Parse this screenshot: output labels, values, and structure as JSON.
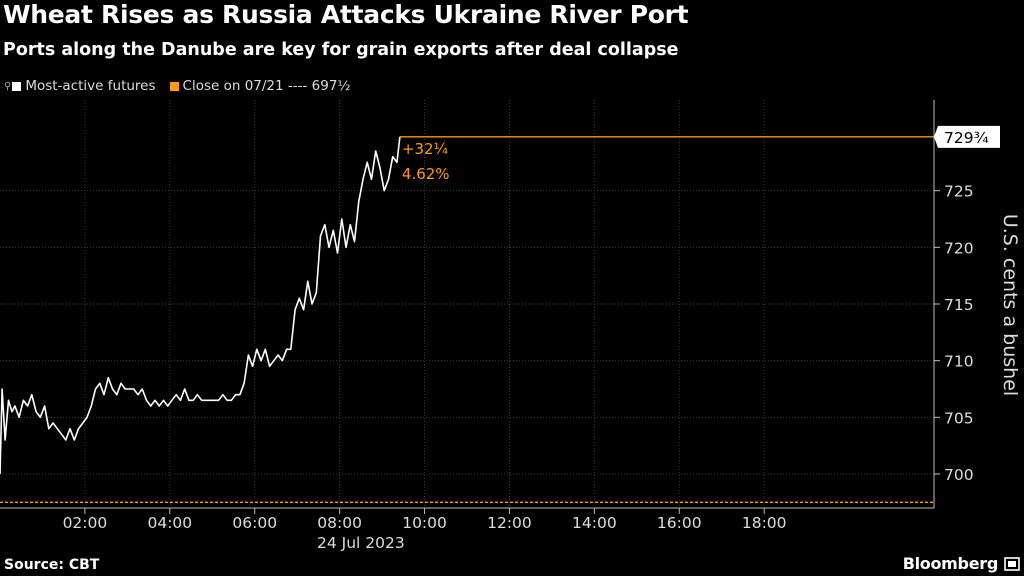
{
  "title": "Wheat Rises as Russia Attacks Ukraine River Port",
  "subtitle": "Ports along the Danube are key for grain exports after deal collapse",
  "legend": {
    "series1": "Most-active futures",
    "series2": "Close on 07/21 ---- 697½",
    "series1_color": "#ffffff",
    "series2_color": "#ff9a0e"
  },
  "source": "Source: CBT",
  "brand": "Bloomberg",
  "chart_data": {
    "type": "line",
    "title": "Wheat Rises as Russia Attacks Ukraine River Port",
    "subtitle": "Ports along the Danube are key for grain exports after deal collapse",
    "ylabel": "U.S. cents a bushel",
    "xlabel": "24 Jul 2023",
    "ylim": [
      697,
      733
    ],
    "xlim_hours": [
      0,
      22
    ],
    "y_ticks": [
      "700",
      "705",
      "710",
      "715",
      "720",
      "725"
    ],
    "x_ticks": [
      {
        "h": 2,
        "label": "02:00"
      },
      {
        "h": 4,
        "label": "04:00"
      },
      {
        "h": 6,
        "label": "06:00"
      },
      {
        "h": 8,
        "label": "08:00"
      },
      {
        "h": 10,
        "label": "10:00"
      },
      {
        "h": 12,
        "label": "12:00"
      },
      {
        "h": 14,
        "label": "14:00"
      },
      {
        "h": 16,
        "label": "16:00"
      },
      {
        "h": 18,
        "label": "18:00"
      }
    ],
    "date_label": "24 Jul 2023",
    "last_value": 729.75,
    "last_value_label": "729¾",
    "change_label": "+32¼",
    "change_pct_label": "4.62%",
    "reference": {
      "name": "Close on 07/21",
      "value": 697.5,
      "color": "#ff9a0e"
    },
    "series": [
      {
        "name": "Most-active futures",
        "color": "#ffffff",
        "x_hours": [
          0.0,
          0.05,
          0.12,
          0.2,
          0.28,
          0.35,
          0.45,
          0.55,
          0.65,
          0.75,
          0.85,
          0.95,
          1.05,
          1.15,
          1.25,
          1.35,
          1.45,
          1.55,
          1.65,
          1.75,
          1.85,
          1.95,
          2.05,
          2.15,
          2.25,
          2.35,
          2.45,
          2.55,
          2.65,
          2.75,
          2.85,
          2.95,
          3.05,
          3.15,
          3.25,
          3.35,
          3.45,
          3.55,
          3.65,
          3.75,
          3.85,
          3.95,
          4.05,
          4.15,
          4.25,
          4.35,
          4.45,
          4.55,
          4.65,
          4.75,
          4.85,
          4.95,
          5.05,
          5.15,
          5.25,
          5.35,
          5.45,
          5.55,
          5.65,
          5.75,
          5.85,
          5.95,
          6.05,
          6.15,
          6.25,
          6.35,
          6.45,
          6.55,
          6.65,
          6.75,
          6.85,
          6.95,
          7.05,
          7.15,
          7.25,
          7.35,
          7.45,
          7.55,
          7.65,
          7.75,
          7.85,
          7.95,
          8.05,
          8.15,
          8.25,
          8.35,
          8.45,
          8.55,
          8.65,
          8.75,
          8.85,
          8.95,
          9.05,
          9.15,
          9.25,
          9.35,
          9.42
        ],
        "values": [
          700.0,
          707.5,
          703.0,
          706.5,
          705.5,
          706.0,
          705.0,
          706.5,
          706.0,
          707.0,
          705.5,
          705.0,
          706.0,
          704.0,
          704.5,
          704.0,
          703.5,
          703.0,
          704.0,
          703.0,
          704.0,
          704.5,
          705.0,
          706.0,
          707.5,
          708.0,
          707.0,
          708.5,
          707.5,
          707.0,
          708.0,
          707.5,
          707.5,
          707.5,
          707.0,
          707.5,
          706.5,
          706.0,
          706.5,
          706.0,
          706.5,
          706.0,
          706.5,
          707.0,
          706.5,
          707.5,
          706.5,
          706.5,
          707.0,
          706.5,
          706.5,
          706.5,
          706.5,
          706.5,
          707.0,
          706.5,
          706.5,
          707.0,
          707.0,
          708.0,
          710.5,
          709.5,
          711.0,
          710.0,
          711.0,
          709.5,
          710.0,
          710.5,
          710.0,
          711.0,
          711.0,
          714.5,
          715.5,
          714.5,
          717.0,
          715.0,
          716.0,
          721.0,
          722.0,
          720.0,
          721.5,
          719.5,
          722.5,
          720.0,
          722.0,
          720.5,
          724.0,
          726.0,
          727.5,
          726.0,
          728.5,
          727.0,
          725.0,
          726.0,
          728.0,
          727.5,
          729.75
        ]
      }
    ]
  }
}
